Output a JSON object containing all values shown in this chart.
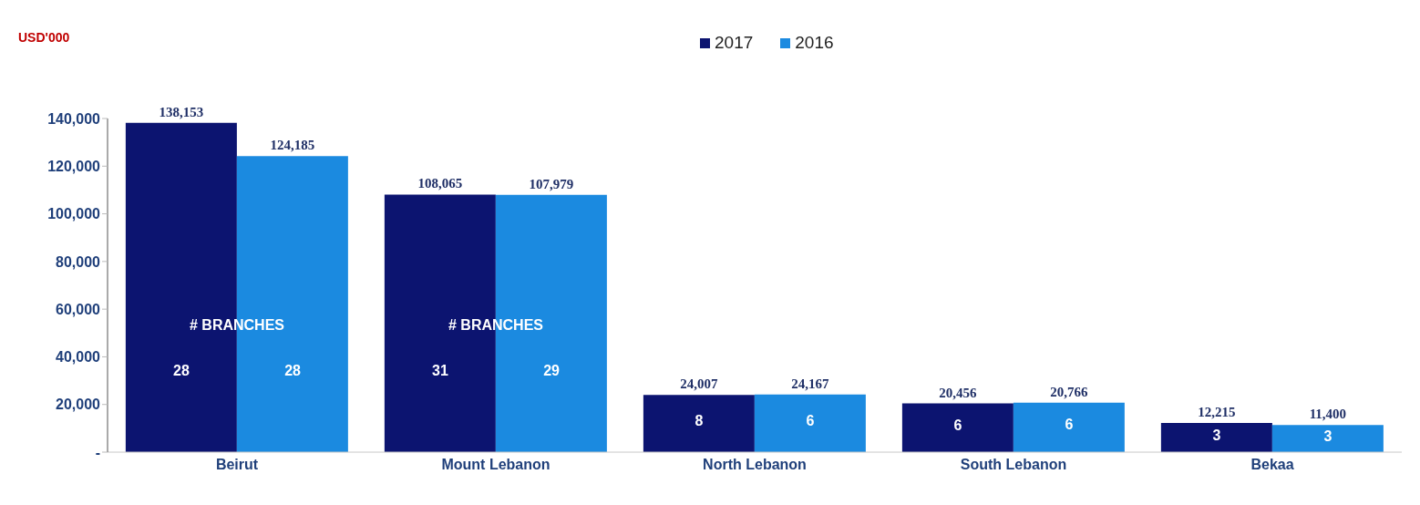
{
  "chart_data": {
    "type": "bar",
    "categories": [
      "Beirut",
      "Mount Lebanon",
      "North Lebanon",
      "South Lebanon",
      "Bekaa"
    ],
    "series": [
      {
        "name": "2017",
        "color": "#0c1470",
        "values": [
          138153,
          108065,
          24007,
          20456,
          12215
        ],
        "value_labels": [
          "138,153",
          "108,065",
          "24,007",
          "20,456",
          "12,215"
        ]
      },
      {
        "name": "2016",
        "color": "#1b8ae0",
        "values": [
          124185,
          107979,
          24167,
          20766,
          11400
        ],
        "value_labels": [
          "124,185",
          "107,979",
          "24,167",
          "20,766",
          "11,400"
        ]
      }
    ],
    "ylim": [
      0,
      140000
    ],
    "yticks": [
      {
        "value": 0,
        "label": "-"
      },
      {
        "value": 20000,
        "label": "20,000"
      },
      {
        "value": 40000,
        "label": "40,000"
      },
      {
        "value": 60000,
        "label": "60,000"
      },
      {
        "value": 80000,
        "label": "80,000"
      },
      {
        "value": 100000,
        "label": "100,000"
      },
      {
        "value": 120000,
        "label": "120,000"
      },
      {
        "value": 140000,
        "label": "140,000"
      }
    ],
    "grid": false,
    "legend": "top",
    "annotations": [
      "USD'000",
      {
        "text": "# BRANCHES",
        "x": "Beirut",
        "y": 50000
      },
      {
        "text": "# BRANCHES",
        "x": "Mount Lebanon",
        "y": 50000
      },
      "28",
      "28",
      "31",
      "29",
      "8",
      "6",
      "6",
      "6",
      "3",
      "3"
    ]
  }
}
